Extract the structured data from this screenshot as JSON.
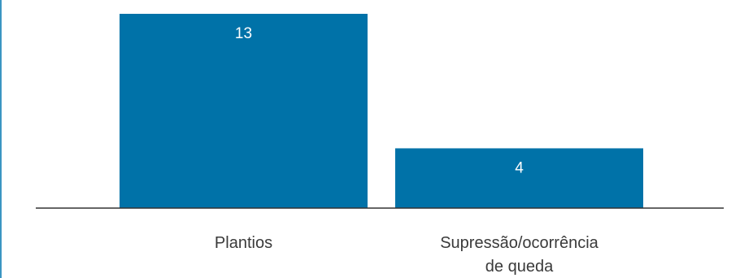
{
  "colors": {
    "bar": "#0072a8",
    "axis": "#333333",
    "frame_border": "#3b95c2"
  },
  "chart_data": {
    "type": "bar",
    "categories": [
      "Plantios",
      "Supressão/ocorrência de queda"
    ],
    "category_lines": [
      [
        "Plantios"
      ],
      [
        "Supressão/ocorrência",
        "de queda"
      ]
    ],
    "values": [
      13,
      4
    ],
    "data_labels": [
      "13",
      "4"
    ],
    "title": "",
    "xlabel": "",
    "ylabel": "",
    "ylim": [
      0,
      13
    ],
    "grid": false,
    "legend": "none"
  }
}
